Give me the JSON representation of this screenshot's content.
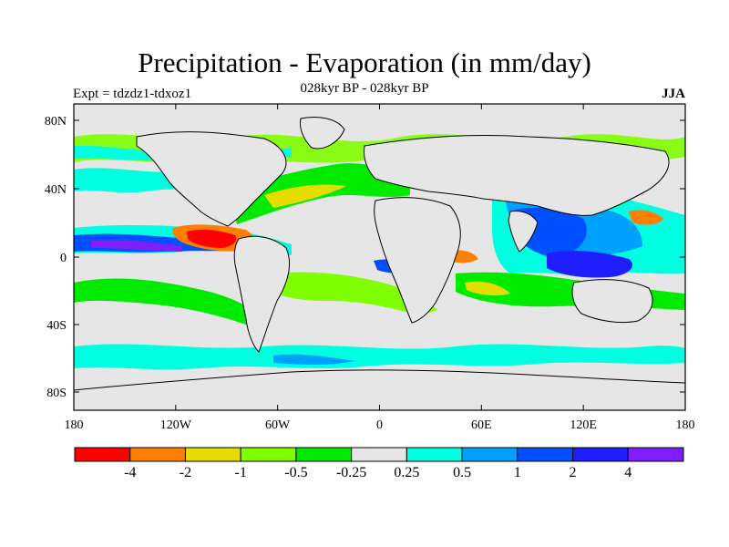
{
  "title": "Precipitation - Evaporation (in mm/day)",
  "subtitle": "028kyr BP - 028kyr BP",
  "left_label": "Expt = tdzdz1-tdxoz1",
  "right_label": "JJA",
  "map": {
    "lat_ticks": [
      "80N",
      "40N",
      "0",
      "40S",
      "80S"
    ],
    "lon_ticks": [
      "180",
      "120W",
      "60W",
      "0",
      "60E",
      "120E",
      "180"
    ],
    "background_color": "#e6e6e6",
    "coastline_color": "#000000"
  },
  "colorbar": {
    "colors": [
      "#ff0000",
      "#ff8000",
      "#e6dc00",
      "#80ff00",
      "#00ea00",
      "#e6e6e6",
      "#00ffe0",
      "#00a0ff",
      "#0050ff",
      "#1e1eff",
      "#7f1eff"
    ],
    "labels": [
      "-4",
      "-2",
      "-1",
      "-0.5",
      "-0.25",
      "0.25",
      "0.5",
      "1",
      "2",
      "4"
    ]
  }
}
